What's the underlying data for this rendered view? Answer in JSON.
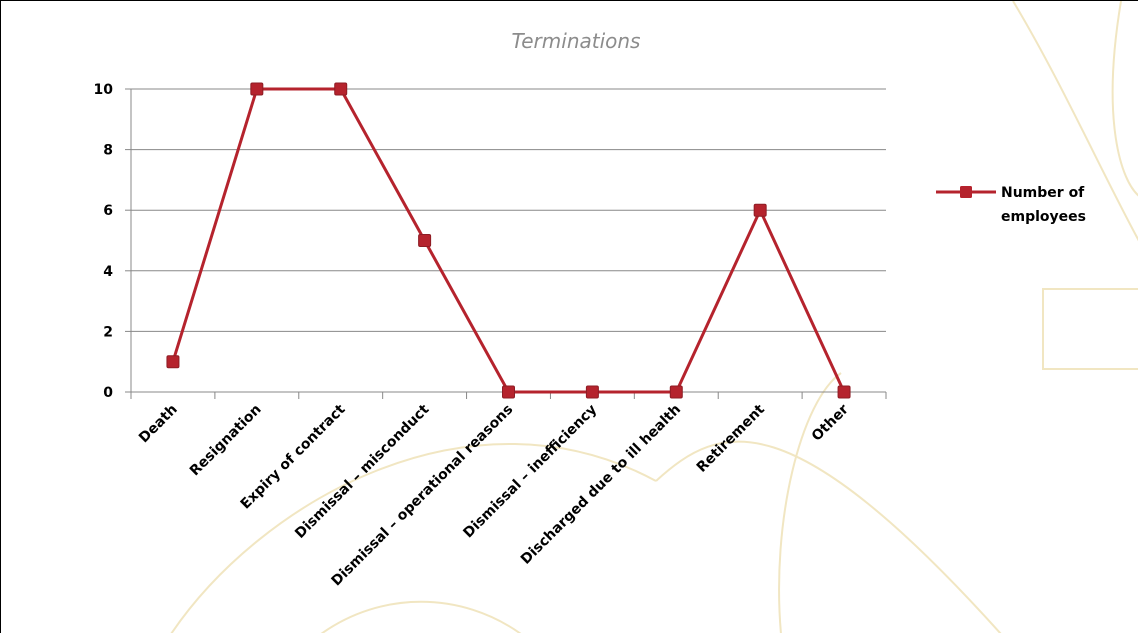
{
  "chart_data": {
    "type": "line",
    "title": "Terminations",
    "categories": [
      "Death",
      "Resignation",
      "Expiry of contract",
      "Dismissal – misconduct",
      "Dismissal – operational reasons",
      "Dismissal – inefficiency",
      "Discharged due to ill health",
      "Retirement",
      "Other"
    ],
    "series": [
      {
        "name": "Number of employees",
        "values": [
          1,
          10,
          10,
          5,
          0,
          0,
          0,
          6,
          0
        ]
      }
    ],
    "legend_lines": [
      "Number of",
      "employees"
    ],
    "yticks": [
      0,
      2,
      4,
      6,
      8,
      10
    ],
    "ylim": [
      0,
      10
    ],
    "grid": true,
    "legend_position": "right",
    "colors": {
      "series": "#b5232d",
      "title": "#8c8c8c",
      "grid": "#888888",
      "background_decor": "#f1e6c2"
    }
  }
}
